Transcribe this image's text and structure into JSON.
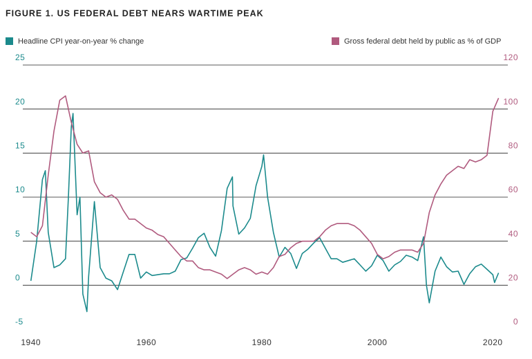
{
  "chart_data": {
    "type": "line",
    "title": "FIGURE 1. US FEDERAL DEBT NEARS WARTIME PEAK",
    "xlim": [
      1938.6,
      2022.6
    ],
    "xticks": [
      1940,
      1960,
      1980,
      2000,
      2020
    ],
    "ylim": [
      -5,
      25
    ],
    "yticks": [
      -5,
      0,
      5,
      10,
      15,
      20,
      25
    ],
    "y2lim": [
      0,
      120
    ],
    "y2ticks": [
      0,
      20,
      40,
      60,
      80,
      100,
      120
    ],
    "grid": true,
    "series": [
      {
        "name": "Headline CPI year-on-year % change",
        "color": "#1b8a8c",
        "x": [
          1940,
          1941,
          1942,
          1942.5,
          1943,
          1944,
          1945,
          1946,
          1946.5,
          1947,
          1947.3,
          1948,
          1948.5,
          1949,
          1949.7,
          1950,
          1951,
          1952,
          1953,
          1954,
          1955,
          1956,
          1957,
          1958,
          1959,
          1960,
          1961,
          1962,
          1963,
          1964,
          1965,
          1966,
          1967,
          1968,
          1969,
          1970,
          1971,
          1972,
          1973,
          1974,
          1974.9,
          1975,
          1976,
          1977,
          1978,
          1979,
          1980,
          1980.3,
          1981,
          1982,
          1983,
          1984,
          1985,
          1986,
          1987,
          1988,
          1989,
          1990,
          1991,
          1992,
          1993,
          1994,
          1995,
          1996,
          1997,
          1998,
          1999,
          2000,
          2001,
          2002,
          2003,
          2004,
          2005,
          2006,
          2007,
          2008,
          2008.5,
          2009,
          2010,
          2011,
          2012,
          2013,
          2014,
          2015,
          2016,
          2017,
          2018,
          2019,
          2020,
          2020.3,
          2021
        ],
        "values": [
          0.5,
          5,
          12,
          13,
          6,
          2,
          2.3,
          3,
          10,
          18,
          19.5,
          8,
          10,
          -1,
          -3,
          1,
          9.5,
          2,
          0.8,
          0.5,
          -0.5,
          1.5,
          3.5,
          3.5,
          0.8,
          1.5,
          1.1,
          1.2,
          1.3,
          1.3,
          1.6,
          2.9,
          3.1,
          4.2,
          5.4,
          5.9,
          4.3,
          3.3,
          6.2,
          11,
          12.3,
          9,
          5.8,
          6.5,
          7.6,
          11.3,
          13.5,
          14.8,
          10,
          6,
          3.2,
          4.3,
          3.6,
          1.9,
          3.6,
          4.1,
          4.8,
          5.4,
          4.2,
          3,
          3,
          2.6,
          2.8,
          3,
          2.3,
          1.6,
          2.2,
          3.4,
          2.8,
          1.6,
          2.3,
          2.7,
          3.4,
          3.2,
          2.8,
          5.5,
          0,
          -2,
          1.6,
          3.2,
          2.1,
          1.5,
          1.6,
          0.1,
          1.3,
          2.1,
          2.4,
          1.8,
          1.2,
          0.3,
          1.4
        ]
      },
      {
        "name": "Gross federal debt held by public as % of GDP",
        "color": "#b05a7e",
        "axis": "y2",
        "x": [
          1940,
          1941,
          1942,
          1943,
          1944,
          1945,
          1946,
          1947,
          1948,
          1949,
          1950,
          1951,
          1952,
          1953,
          1954,
          1955,
          1956,
          1957,
          1958,
          1959,
          1960,
          1961,
          1962,
          1963,
          1964,
          1965,
          1966,
          1967,
          1968,
          1969,
          1970,
          1971,
          1972,
          1973,
          1974,
          1975,
          1976,
          1977,
          1978,
          1979,
          1980,
          1981,
          1982,
          1983,
          1984,
          1985,
          1986,
          1987,
          1988,
          1989,
          1990,
          1991,
          1992,
          1993,
          1994,
          1995,
          1996,
          1997,
          1998,
          1999,
          2000,
          2001,
          2002,
          2003,
          2004,
          2005,
          2006,
          2007,
          2008,
          2009,
          2010,
          2011,
          2012,
          2013,
          2014,
          2015,
          2016,
          2017,
          2018,
          2019,
          2020,
          2021
        ],
        "values": [
          44,
          42,
          47,
          70,
          90,
          104,
          106,
          94,
          84,
          80,
          81,
          67,
          62,
          60,
          61,
          59,
          54,
          50,
          50,
          48,
          46,
          45,
          43,
          42,
          39,
          36,
          33,
          31,
          31,
          28,
          27,
          27,
          26,
          25,
          23,
          25,
          27,
          28,
          27,
          25,
          26,
          25,
          28,
          33,
          34,
          37,
          39,
          40,
          40,
          40,
          42,
          45,
          47,
          48,
          48,
          48,
          47,
          45,
          42,
          39,
          34,
          32,
          33,
          35,
          36,
          36,
          36,
          35,
          39,
          53,
          61,
          66,
          70,
          72,
          74,
          73,
          77,
          76,
          77,
          79,
          99,
          105
        ]
      }
    ]
  }
}
